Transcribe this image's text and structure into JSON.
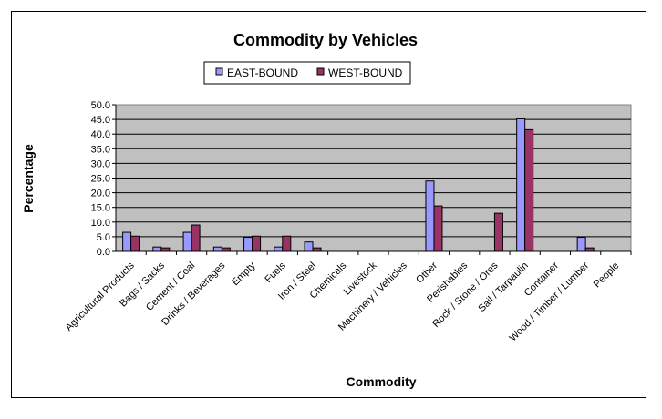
{
  "chart_data": {
    "type": "bar",
    "title": "Commodity by Vehicles",
    "xlabel": "Commodity",
    "ylabel": "Percentage",
    "ylim": [
      0,
      50
    ],
    "yticks": [
      "0.0",
      "5.0",
      "10.0",
      "15.0",
      "20.0",
      "25.0",
      "30.0",
      "35.0",
      "40.0",
      "45.0",
      "50.0"
    ],
    "grid": true,
    "legend_position": "top",
    "plot_background": "#c0c0c0",
    "categories": [
      "Agricultural Products",
      "Bags / Sacks",
      "Cement / Coal",
      "Drinks / Beverages",
      "Empty",
      "Fuels",
      "Iron / Steel",
      "Chemicals",
      "Livestock",
      "Machinery / Vehicles",
      "Other",
      "Perishables",
      "Rock / Stone / Ores",
      "Sail / Tarpaulin",
      "Container",
      "Wood / Timber / Lumber",
      "People"
    ],
    "series": [
      {
        "name": "EAST-BOUND",
        "color": "#9999ff",
        "values": [
          6.5,
          1.5,
          6.5,
          1.5,
          4.8,
          1.5,
          3.2,
          0,
          0,
          0,
          24.0,
          0,
          0,
          45.2,
          0,
          4.8,
          0
        ]
      },
      {
        "name": "WEST-BOUND",
        "color": "#993366",
        "values": [
          5.2,
          1.2,
          9.0,
          1.2,
          5.2,
          5.2,
          1.2,
          0,
          0,
          0,
          15.5,
          0,
          13.0,
          41.5,
          0,
          1.2,
          0
        ]
      }
    ]
  }
}
